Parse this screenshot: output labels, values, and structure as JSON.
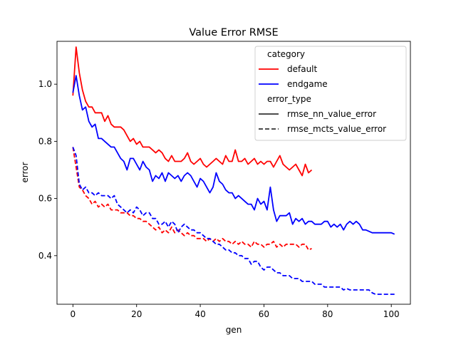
{
  "chart_data": {
    "type": "line",
    "title": "Value Error RMSE",
    "xlabel": "gen",
    "ylabel": "error",
    "xlim": [
      -5,
      106
    ],
    "ylim": [
      0.23,
      1.15
    ],
    "xticks": [
      0,
      20,
      40,
      60,
      80,
      100
    ],
    "yticks": [
      0.4,
      0.6,
      0.8,
      1.0
    ],
    "xtick_labels": [
      "0",
      "20",
      "40",
      "60",
      "80",
      "100"
    ],
    "ytick_labels": [
      "0.4",
      "0.6",
      "0.8",
      "1.0"
    ],
    "grid": false,
    "legend": {
      "placement": "top-right",
      "category_title": "category",
      "categories": [
        {
          "name": "default",
          "color": "#ff0000"
        },
        {
          "name": "endgame",
          "color": "#0000ff"
        }
      ],
      "style_title": "error_type",
      "styles": [
        {
          "name": "rmse_nn_value_error",
          "dash": "solid"
        },
        {
          "name": "rmse_mcts_value_error",
          "dash": "dashed"
        }
      ]
    },
    "series": [
      {
        "name": "default",
        "error_type": "rmse_nn_value_error",
        "color": "#ff0000",
        "dash": "solid",
        "x": [
          0,
          1,
          2,
          3,
          4,
          5,
          6,
          7,
          8,
          9,
          10,
          11,
          12,
          13,
          14,
          15,
          16,
          17,
          18,
          19,
          20,
          21,
          22,
          23,
          24,
          25,
          26,
          27,
          28,
          29,
          30,
          31,
          32,
          33,
          34,
          35,
          36,
          37,
          38,
          39,
          40,
          41,
          42,
          43,
          44,
          45,
          46,
          47,
          48,
          49,
          50,
          51,
          52,
          53,
          54,
          55,
          56,
          57,
          58,
          59,
          60,
          61,
          62,
          63,
          64,
          65,
          66,
          67,
          68,
          69,
          70,
          71,
          72,
          73,
          74,
          75
        ],
        "y": [
          0.96,
          1.13,
          1.04,
          0.98,
          0.94,
          0.92,
          0.92,
          0.9,
          0.9,
          0.9,
          0.87,
          0.89,
          0.86,
          0.85,
          0.85,
          0.85,
          0.84,
          0.82,
          0.8,
          0.81,
          0.79,
          0.8,
          0.78,
          0.78,
          0.78,
          0.77,
          0.76,
          0.77,
          0.76,
          0.74,
          0.73,
          0.75,
          0.73,
          0.73,
          0.73,
          0.74,
          0.76,
          0.73,
          0.72,
          0.73,
          0.74,
          0.72,
          0.71,
          0.72,
          0.73,
          0.74,
          0.73,
          0.72,
          0.75,
          0.73,
          0.73,
          0.77,
          0.73,
          0.73,
          0.74,
          0.72,
          0.73,
          0.74,
          0.72,
          0.73,
          0.72,
          0.73,
          0.73,
          0.71,
          0.73,
          0.75,
          0.72,
          0.71,
          0.7,
          0.71,
          0.72,
          0.7,
          0.68,
          0.72,
          0.69,
          0.7
        ]
      },
      {
        "name": "endgame",
        "error_type": "rmse_nn_value_error",
        "color": "#0000ff",
        "dash": "solid",
        "x": [
          0,
          1,
          2,
          3,
          4,
          5,
          6,
          7,
          8,
          9,
          10,
          11,
          12,
          13,
          14,
          15,
          16,
          17,
          18,
          19,
          20,
          21,
          22,
          23,
          24,
          25,
          26,
          27,
          28,
          29,
          30,
          31,
          32,
          33,
          34,
          35,
          36,
          37,
          38,
          39,
          40,
          41,
          42,
          43,
          44,
          45,
          46,
          47,
          48,
          49,
          50,
          51,
          52,
          53,
          54,
          55,
          56,
          57,
          58,
          59,
          60,
          61,
          62,
          63,
          64,
          65,
          66,
          67,
          68,
          69,
          70,
          71,
          72,
          73,
          74,
          75,
          76,
          77,
          78,
          79,
          80,
          81,
          82,
          83,
          84,
          85,
          86,
          87,
          88,
          89,
          90,
          91,
          92,
          93,
          94,
          95,
          96,
          97,
          98,
          99,
          100,
          101
        ],
        "y": [
          0.97,
          1.03,
          0.96,
          0.91,
          0.92,
          0.87,
          0.85,
          0.86,
          0.81,
          0.81,
          0.8,
          0.79,
          0.78,
          0.78,
          0.76,
          0.74,
          0.73,
          0.7,
          0.74,
          0.74,
          0.72,
          0.7,
          0.73,
          0.71,
          0.7,
          0.66,
          0.68,
          0.67,
          0.69,
          0.66,
          0.69,
          0.68,
          0.67,
          0.68,
          0.66,
          0.68,
          0.69,
          0.68,
          0.66,
          0.64,
          0.67,
          0.66,
          0.64,
          0.62,
          0.64,
          0.69,
          0.66,
          0.65,
          0.63,
          0.62,
          0.62,
          0.6,
          0.61,
          0.6,
          0.59,
          0.58,
          0.58,
          0.56,
          0.6,
          0.58,
          0.59,
          0.56,
          0.64,
          0.56,
          0.52,
          0.54,
          0.54,
          0.54,
          0.55,
          0.51,
          0.53,
          0.52,
          0.53,
          0.51,
          0.52,
          0.52,
          0.51,
          0.51,
          0.51,
          0.52,
          0.52,
          0.5,
          0.51,
          0.5,
          0.51,
          0.49,
          0.51,
          0.52,
          0.51,
          0.52,
          0.51,
          0.49,
          0.49,
          0.485,
          0.48,
          0.48,
          0.48,
          0.48,
          0.48,
          0.48,
          0.48,
          0.475
        ]
      },
      {
        "name": "default",
        "error_type": "rmse_mcts_value_error",
        "color": "#ff0000",
        "dash": "dashed",
        "x": [
          0,
          1,
          2,
          3,
          4,
          5,
          6,
          7,
          8,
          9,
          10,
          11,
          12,
          13,
          14,
          15,
          16,
          17,
          18,
          19,
          20,
          21,
          22,
          23,
          24,
          25,
          26,
          27,
          28,
          29,
          30,
          31,
          32,
          33,
          34,
          35,
          36,
          37,
          38,
          39,
          40,
          41,
          42,
          43,
          44,
          45,
          46,
          47,
          48,
          49,
          50,
          51,
          52,
          53,
          54,
          55,
          56,
          57,
          58,
          59,
          60,
          61,
          62,
          63,
          64,
          65,
          66,
          67,
          68,
          69,
          70,
          71,
          72,
          73,
          74,
          75
        ],
        "y": [
          0.78,
          0.71,
          0.64,
          0.63,
          0.61,
          0.6,
          0.58,
          0.59,
          0.57,
          0.58,
          0.57,
          0.58,
          0.56,
          0.56,
          0.56,
          0.55,
          0.55,
          0.55,
          0.54,
          0.54,
          0.53,
          0.53,
          0.52,
          0.52,
          0.51,
          0.5,
          0.49,
          0.5,
          0.48,
          0.49,
          0.48,
          0.5,
          0.48,
          0.49,
          0.48,
          0.47,
          0.48,
          0.47,
          0.47,
          0.46,
          0.46,
          0.46,
          0.45,
          0.46,
          0.45,
          0.46,
          0.45,
          0.46,
          0.45,
          0.45,
          0.44,
          0.45,
          0.44,
          0.45,
          0.44,
          0.44,
          0.43,
          0.45,
          0.44,
          0.44,
          0.43,
          0.44,
          0.44,
          0.45,
          0.43,
          0.44,
          0.43,
          0.44,
          0.44,
          0.44,
          0.44,
          0.43,
          0.44,
          0.44,
          0.42,
          0.425
        ]
      },
      {
        "name": "endgame",
        "error_type": "rmse_mcts_value_error",
        "color": "#0000ff",
        "dash": "dashed",
        "x": [
          0,
          1,
          2,
          3,
          4,
          5,
          6,
          7,
          8,
          9,
          10,
          11,
          12,
          13,
          14,
          15,
          16,
          17,
          18,
          19,
          20,
          21,
          22,
          23,
          24,
          25,
          26,
          27,
          28,
          29,
          30,
          31,
          32,
          33,
          34,
          35,
          36,
          37,
          38,
          39,
          40,
          41,
          42,
          43,
          44,
          45,
          46,
          47,
          48,
          49,
          50,
          51,
          52,
          53,
          54,
          55,
          56,
          57,
          58,
          59,
          60,
          61,
          62,
          63,
          64,
          65,
          66,
          67,
          68,
          69,
          70,
          71,
          72,
          73,
          74,
          75,
          76,
          77,
          78,
          79,
          80,
          81,
          82,
          83,
          84,
          85,
          86,
          87,
          88,
          89,
          90,
          91,
          92,
          93,
          94,
          95,
          96,
          97,
          98,
          99,
          100,
          101
        ],
        "y": [
          0.78,
          0.75,
          0.65,
          0.63,
          0.64,
          0.62,
          0.62,
          0.61,
          0.62,
          0.61,
          0.61,
          0.61,
          0.6,
          0.61,
          0.58,
          0.57,
          0.56,
          0.55,
          0.56,
          0.55,
          0.57,
          0.56,
          0.54,
          0.55,
          0.55,
          0.53,
          0.53,
          0.51,
          0.51,
          0.52,
          0.5,
          0.52,
          0.51,
          0.48,
          0.5,
          0.51,
          0.5,
          0.49,
          0.49,
          0.48,
          0.48,
          0.47,
          0.46,
          0.46,
          0.45,
          0.44,
          0.44,
          0.43,
          0.42,
          0.42,
          0.41,
          0.41,
          0.4,
          0.4,
          0.39,
          0.39,
          0.37,
          0.38,
          0.38,
          0.36,
          0.35,
          0.36,
          0.36,
          0.35,
          0.34,
          0.34,
          0.33,
          0.33,
          0.33,
          0.32,
          0.32,
          0.32,
          0.31,
          0.31,
          0.31,
          0.31,
          0.3,
          0.3,
          0.3,
          0.29,
          0.29,
          0.29,
          0.29,
          0.29,
          0.29,
          0.28,
          0.285,
          0.28,
          0.28,
          0.28,
          0.28,
          0.28,
          0.28,
          0.28,
          0.27,
          0.265,
          0.265,
          0.265,
          0.265,
          0.265,
          0.265,
          0.265
        ]
      }
    ]
  }
}
